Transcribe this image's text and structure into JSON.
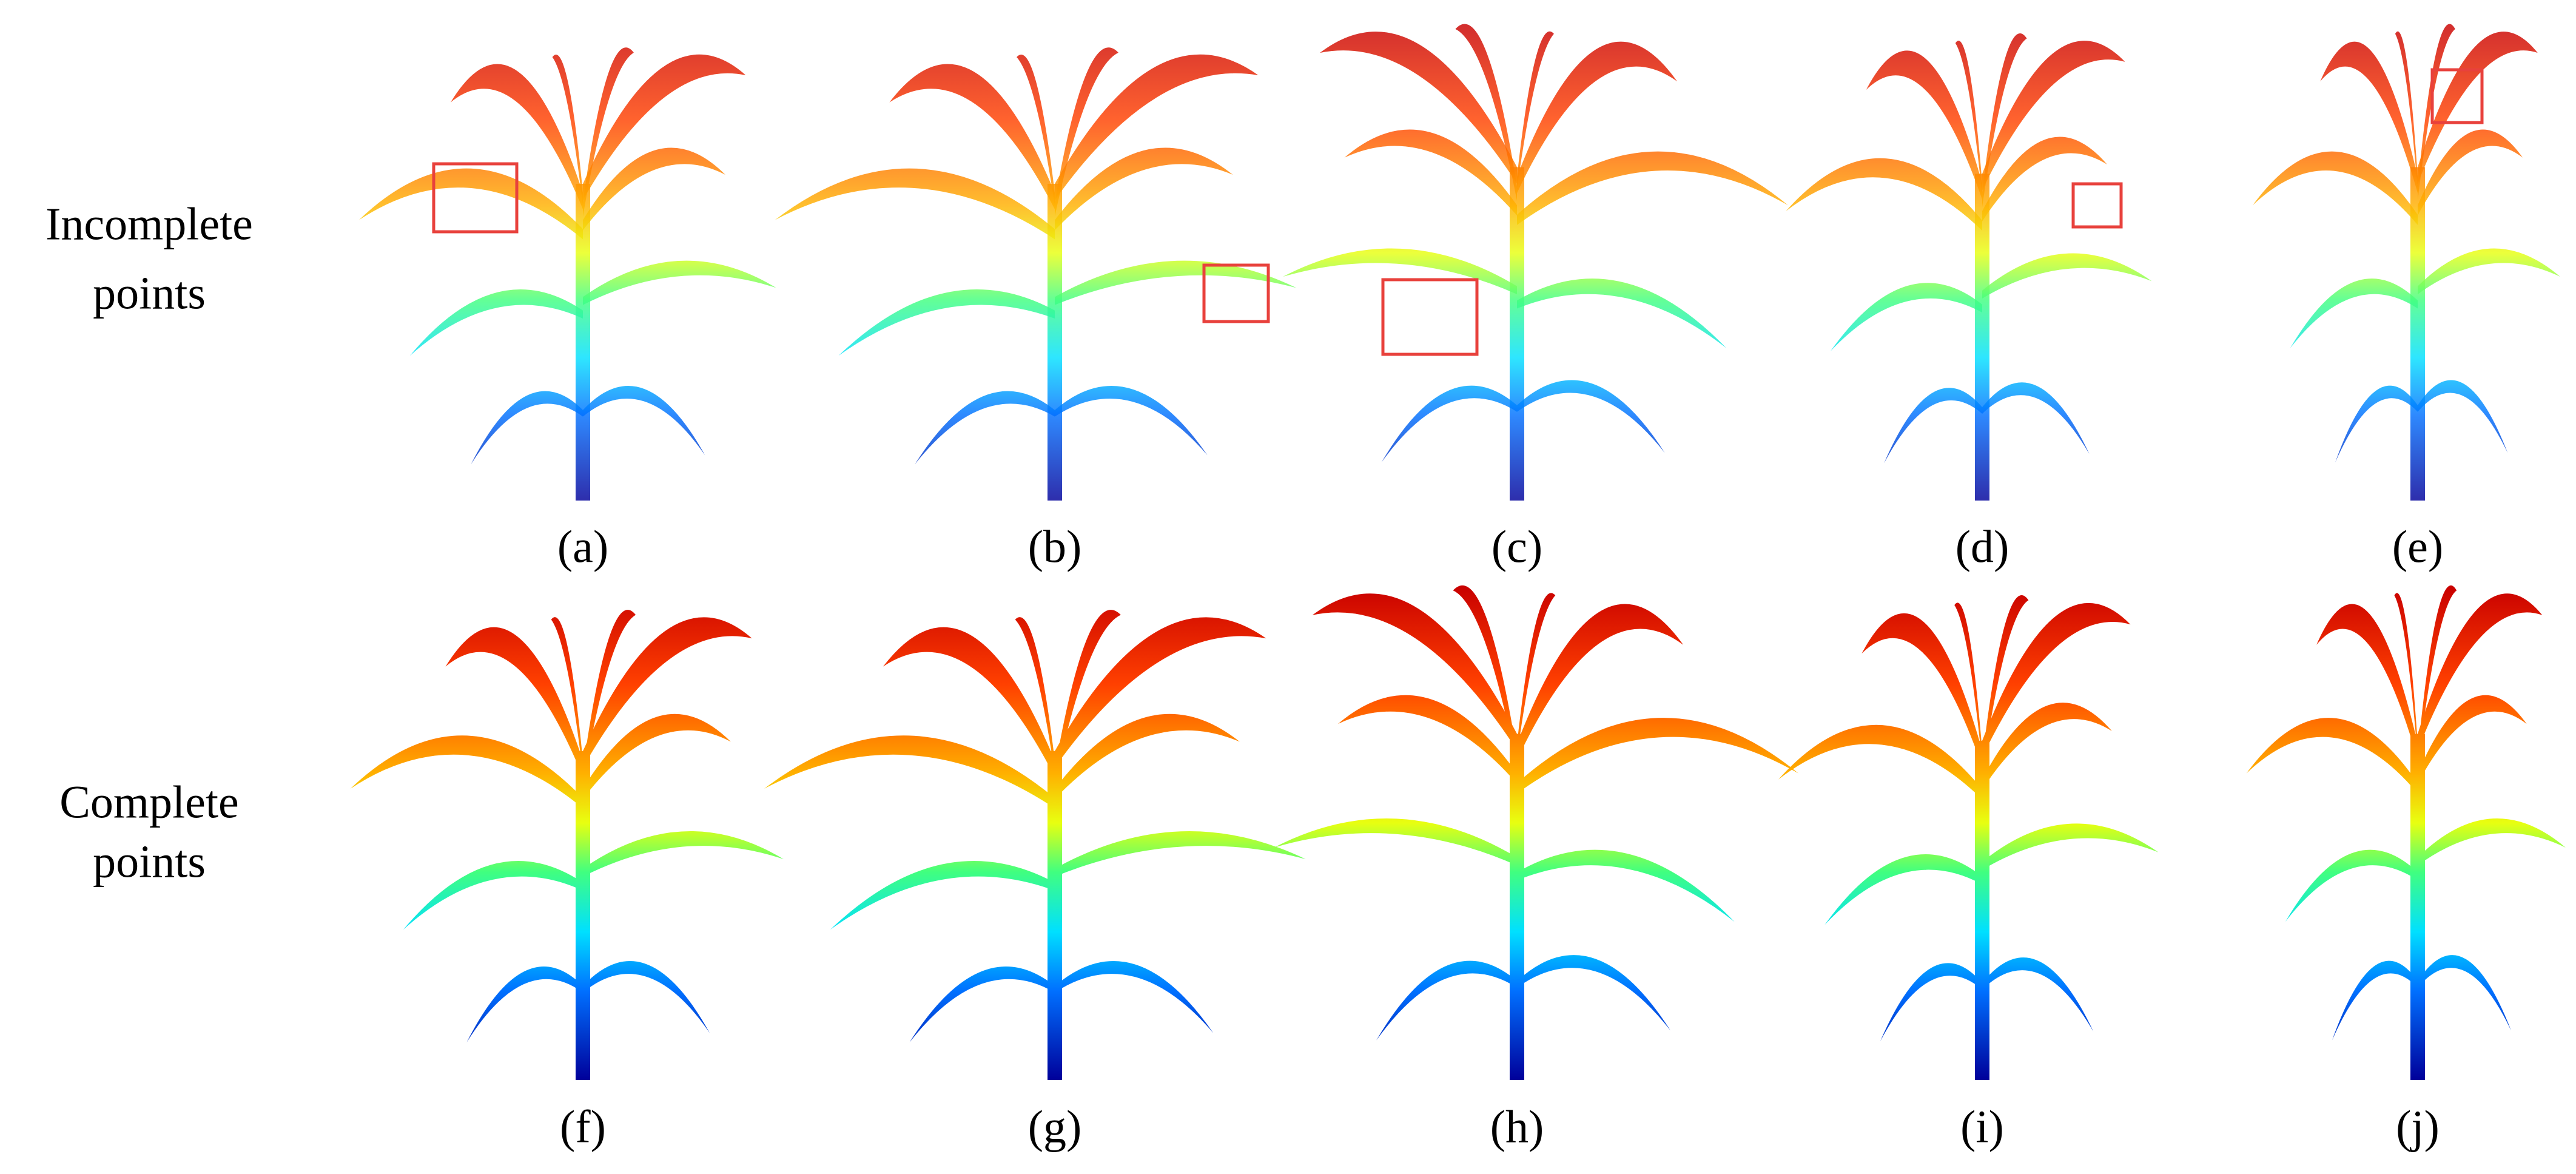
{
  "row_labels": [
    [
      "Incomplete",
      "points"
    ],
    [
      "Complete",
      "points"
    ]
  ],
  "panels": [
    [
      "(a)",
      "(b)",
      "(c)",
      "(d)",
      "(e)"
    ],
    [
      "(f)",
      "(g)",
      "(h)",
      "(i)",
      "(j)"
    ]
  ]
}
